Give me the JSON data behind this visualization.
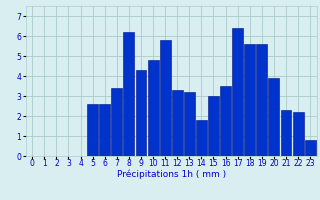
{
  "hours": [
    0,
    1,
    2,
    3,
    4,
    5,
    6,
    7,
    8,
    9,
    10,
    11,
    12,
    13,
    14,
    15,
    16,
    17,
    18,
    19,
    20,
    21,
    22,
    23
  ],
  "values": [
    0,
    0,
    0,
    0,
    0,
    2.6,
    2.6,
    3.4,
    6.2,
    4.3,
    4.8,
    5.8,
    3.3,
    3.2,
    1.8,
    3.0,
    3.5,
    6.4,
    5.6,
    5.6,
    3.9,
    2.3,
    2.2,
    0.8
  ],
  "bar_color": "#0033CC",
  "bar_edge_color": "#001188",
  "background_color": "#D8EEF0",
  "grid_color": "#AACCCC",
  "text_color": "#0000CC",
  "xlabel": "Précipitations 1h ( mm )",
  "ylim": [
    0,
    7.5
  ],
  "yticks": [
    0,
    1,
    2,
    3,
    4,
    5,
    6,
    7
  ],
  "tick_fontsize": 5.5,
  "xlabel_fontsize": 6.5
}
